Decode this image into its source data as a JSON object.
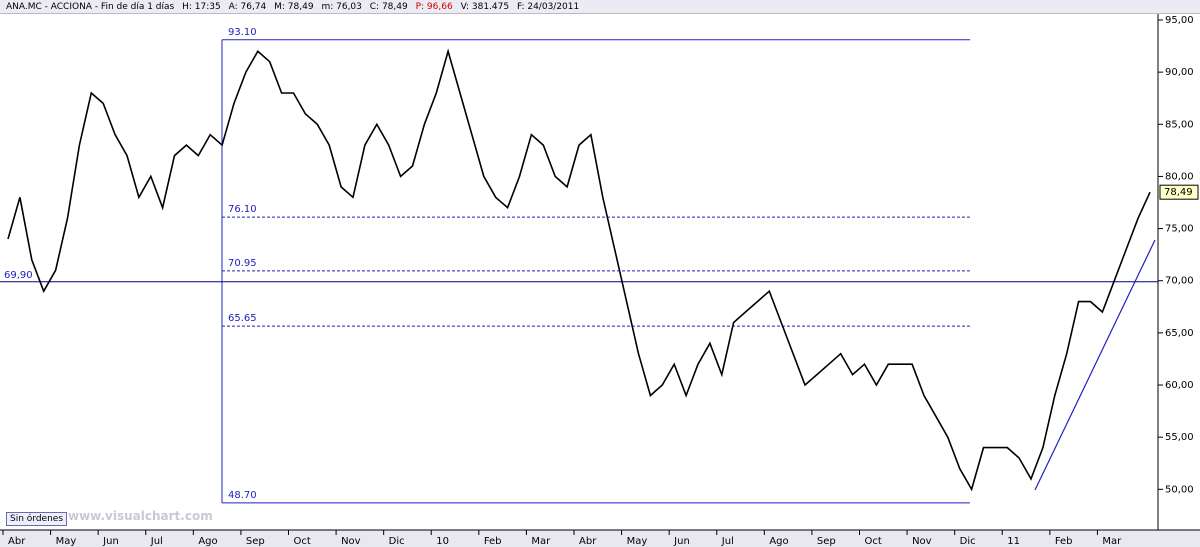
{
  "header": {
    "items": [
      "ANA.MC - ACCIONA - Fin de día 1 días",
      "H: 17:35",
      "A: 76,74",
      "M: 78,49",
      "m: 76,03",
      "C: 78,49",
      "P: 96,66",
      "V: 381.475",
      "F: 24/03/2011"
    ]
  },
  "ui": {
    "orders_button": "Sin órdenes",
    "watermark": "www.visualchart.com"
  },
  "chart_data": {
    "type": "line",
    "color": "#000000",
    "line_color": "#2020c0",
    "categories": [
      "Abr",
      null,
      null,
      null,
      "May",
      null,
      null,
      null,
      "Jun",
      null,
      null,
      null,
      "Jul",
      null,
      null,
      null,
      "Ago",
      null,
      null,
      null,
      "Sep",
      null,
      null,
      null,
      "Oct",
      null,
      null,
      null,
      "Nov",
      null,
      null,
      null,
      "Dic",
      null,
      null,
      null,
      "10",
      null,
      null,
      null,
      "Feb",
      null,
      null,
      null,
      "Mar",
      null,
      null,
      null,
      "Abr",
      null,
      null,
      null,
      "May",
      null,
      null,
      null,
      "Jun",
      null,
      null,
      null,
      "Jul",
      null,
      null,
      null,
      "Ago",
      null,
      null,
      null,
      "Sep",
      null,
      null,
      null,
      "Oct",
      null,
      null,
      null,
      "Nov",
      null,
      null,
      null,
      "Dic",
      null,
      null,
      null,
      "11",
      null,
      null,
      null,
      "Feb",
      null,
      null,
      null,
      "Mar",
      null,
      null,
      null,
      null
    ],
    "values": [
      74,
      78,
      72,
      69,
      71,
      76,
      83,
      88,
      87,
      84,
      82,
      78,
      80,
      77,
      82,
      83,
      82,
      84,
      83,
      87,
      90,
      92,
      91,
      88,
      88,
      86,
      85,
      83,
      79,
      78,
      83,
      85,
      83,
      80,
      81,
      85,
      88,
      92,
      88,
      84,
      80,
      78,
      77,
      80,
      84,
      83,
      80,
      79,
      83,
      84,
      78,
      73,
      68,
      63,
      59,
      60,
      62,
      59,
      62,
      64,
      61,
      66,
      67,
      68,
      69,
      66,
      63,
      60,
      61,
      62,
      63,
      61,
      62,
      60,
      62,
      62,
      62,
      59,
      57,
      55,
      52,
      50,
      54,
      54,
      54,
      53,
      51,
      54,
      59,
      63,
      68,
      68,
      67,
      70,
      73,
      76,
      78.49
    ],
    "ylim": [
      46.1,
      96.15
    ],
    "yticks": [
      {
        "value": 50,
        "label": "50,00"
      },
      {
        "value": 55,
        "label": "55,00"
      },
      {
        "value": 60,
        "label": "60,00"
      },
      {
        "value": 65,
        "label": "65,00"
      },
      {
        "value": 70,
        "label": "70,00"
      },
      {
        "value": 75,
        "label": "75,00"
      },
      {
        "value": 80,
        "label": "80,00"
      },
      {
        "value": 85,
        "label": "85,00"
      },
      {
        "value": 90,
        "label": "90,00"
      },
      {
        "value": 95,
        "label": "95,00"
      }
    ],
    "fibonacci_levels": [
      {
        "value": 93.1,
        "label": "93.10"
      },
      {
        "value": 76.1,
        "label": "76.10"
      },
      {
        "value": 70.95,
        "label": "70.95"
      },
      {
        "value": 65.65,
        "label": "65.65"
      },
      {
        "value": 48.7,
        "label": "48.70"
      }
    ],
    "horizontal_line": {
      "value": 69.9,
      "label": "69,90"
    },
    "current_price": {
      "value": 78.49,
      "label": "78,49"
    }
  }
}
